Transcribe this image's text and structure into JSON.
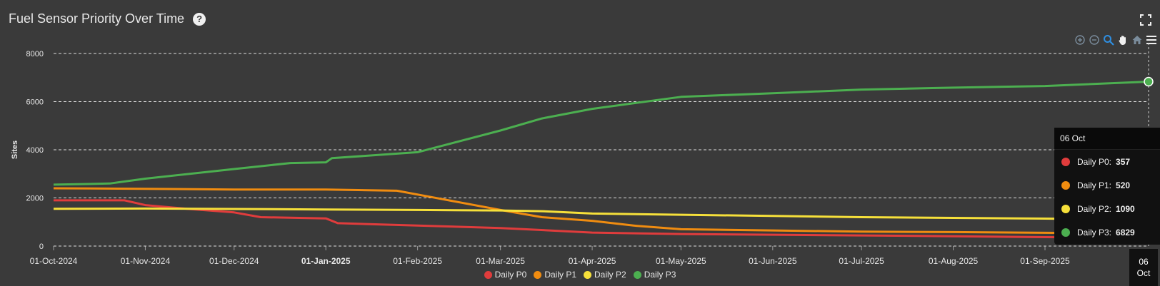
{
  "header": {
    "title": "Fuel Sensor Priority Over Time",
    "help_glyph": "?"
  },
  "toolbar": {
    "icons": [
      "zoom-in-icon",
      "zoom-out-icon",
      "selection-zoom-icon",
      "pan-icon",
      "home-icon",
      "menu-icon"
    ]
  },
  "colors": {
    "p0": "#e03c3c",
    "p1": "#f08c10",
    "p2": "#f6e03a",
    "p3": "#4caf50"
  },
  "chart_data": {
    "type": "line",
    "ylabel": "Sites",
    "ylim": [
      0,
      8000
    ],
    "yticks": [
      0,
      2000,
      4000,
      6000,
      8000
    ],
    "xlim": [
      "2024-10-01",
      "2025-10-06"
    ],
    "xticks": [
      "01-Oct-2024",
      "01-Nov-2024",
      "01-Dec-2024",
      "01-Jan-2025",
      "01-Feb-2025",
      "01-Mar-2025",
      "01-Apr-2025",
      "01-May-2025",
      "01-Jun-2025",
      "01-Jul-2025",
      "01-Aug-2025",
      "01-Sep-2025"
    ],
    "xtick_dates": [
      "2024-10-01",
      "2024-11-01",
      "2024-12-01",
      "2025-01-01",
      "2025-02-01",
      "2025-03-01",
      "2025-04-01",
      "2025-05-01",
      "2025-06-01",
      "2025-07-01",
      "2025-08-01",
      "2025-09-01"
    ],
    "bold_tick": "01-Jan-2025",
    "grid": true,
    "legend_position": "bottom",
    "series": [
      {
        "name": "Daily P0",
        "color": "#e03c3c",
        "x": [
          "2024-10-01",
          "2024-10-25",
          "2024-11-01",
          "2024-11-15",
          "2024-12-01",
          "2024-12-10",
          "2025-01-01",
          "2025-01-05",
          "2025-02-01",
          "2025-03-01",
          "2025-04-01",
          "2025-05-01",
          "2025-06-01",
          "2025-07-01",
          "2025-08-01",
          "2025-09-01",
          "2025-10-06"
        ],
        "y": [
          1900,
          1900,
          1700,
          1550,
          1400,
          1200,
          1150,
          950,
          850,
          750,
          560,
          500,
          470,
          440,
          410,
          370,
          357
        ]
      },
      {
        "name": "Daily P1",
        "color": "#f08c10",
        "x": [
          "2024-10-01",
          "2024-11-01",
          "2024-12-01",
          "2025-01-01",
          "2025-01-25",
          "2025-02-05",
          "2025-03-01",
          "2025-03-15",
          "2025-04-01",
          "2025-04-15",
          "2025-05-01",
          "2025-06-01",
          "2025-07-01",
          "2025-08-01",
          "2025-09-01",
          "2025-10-06"
        ],
        "y": [
          2400,
          2380,
          2350,
          2350,
          2300,
          2050,
          1500,
          1200,
          1050,
          850,
          700,
          650,
          600,
          580,
          550,
          520
        ]
      },
      {
        "name": "Daily P2",
        "color": "#f6e03a",
        "x": [
          "2024-10-01",
          "2024-11-01",
          "2024-12-01",
          "2025-01-01",
          "2025-02-01",
          "2025-03-01",
          "2025-03-15",
          "2025-04-01",
          "2025-05-01",
          "2025-06-01",
          "2025-07-01",
          "2025-08-01",
          "2025-09-01",
          "2025-10-06"
        ],
        "y": [
          1550,
          1560,
          1540,
          1520,
          1500,
          1480,
          1450,
          1350,
          1300,
          1250,
          1200,
          1170,
          1140,
          1090
        ]
      },
      {
        "name": "Daily P3",
        "color": "#4caf50",
        "x": [
          "2024-10-01",
          "2024-10-20",
          "2024-11-01",
          "2024-12-01",
          "2024-12-20",
          "2025-01-01",
          "2025-01-03",
          "2025-02-01",
          "2025-03-01",
          "2025-03-15",
          "2025-04-01",
          "2025-05-01",
          "2025-06-01",
          "2025-07-01",
          "2025-08-01",
          "2025-09-01",
          "2025-10-06"
        ],
        "y": [
          2550,
          2600,
          2800,
          3200,
          3450,
          3480,
          3650,
          3900,
          4800,
          5300,
          5700,
          6200,
          6350,
          6500,
          6580,
          6650,
          6829
        ]
      }
    ],
    "tooltip": {
      "title": "06 Oct",
      "rows": [
        {
          "label": "Daily P0:",
          "value": "357"
        },
        {
          "label": "Daily P1:",
          "value": "520"
        },
        {
          "label": "Daily P2:",
          "value": "1090"
        },
        {
          "label": "Daily P3:",
          "value": "6829"
        }
      ],
      "crosshair_date": "2025-10-06",
      "crosshair_label_top": "06",
      "crosshair_label_bottom": "Oct"
    }
  }
}
